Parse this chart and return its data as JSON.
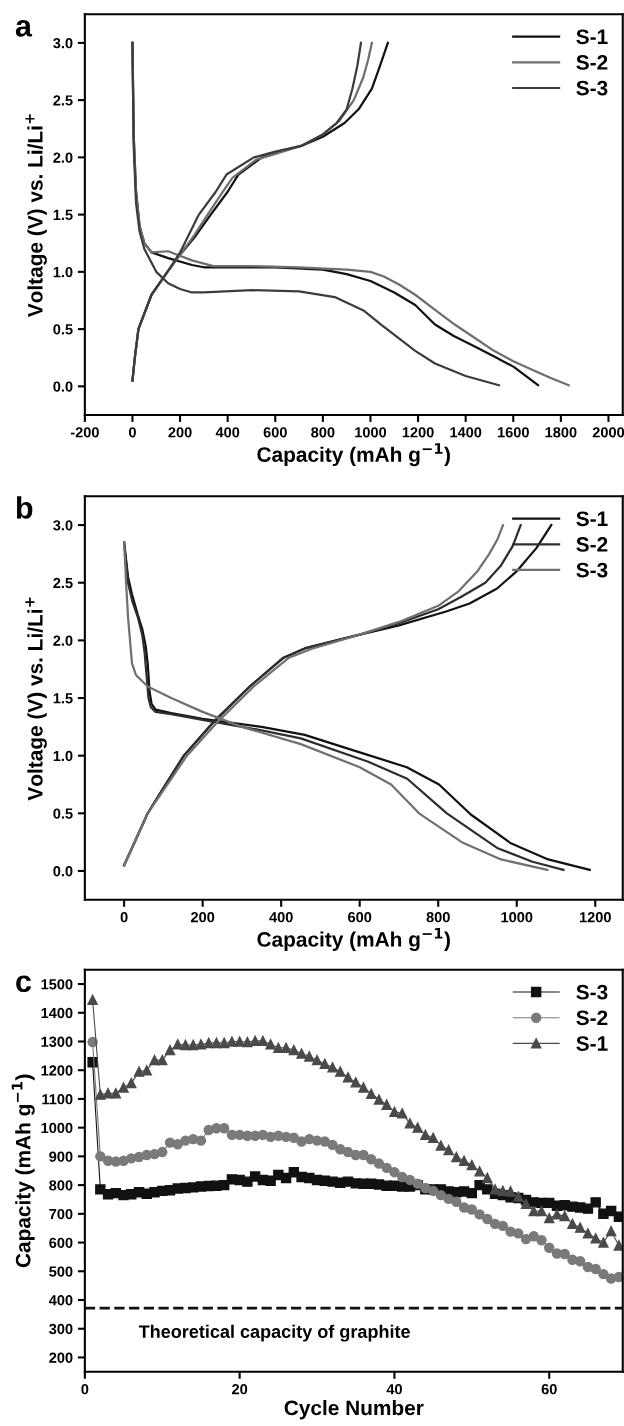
{
  "chart_data": [
    {
      "type": "line",
      "title": "a",
      "xlabel": "Capacity (mAh g$^{−1}$)",
      "ylabel": "Voltage (V) vs. Li/Li$^{+}$",
      "xlim": [
        -200,
        2060
      ],
      "ylim": [
        -0.25,
        3.25
      ],
      "xticks": [
        -200,
        0,
        200,
        400,
        600,
        800,
        1000,
        1200,
        1400,
        1600,
        1800,
        2000
      ],
      "yticks": [
        {
          "value": 0,
          "label": "0.0"
        },
        {
          "value": 0.5,
          "label": "0.5"
        },
        {
          "value": 1,
          "label": "1.0"
        },
        {
          "value": 1.5,
          "label": "1.5"
        },
        {
          "value": 2,
          "label": "2.0"
        },
        {
          "value": 2.5,
          "label": "2.5"
        },
        {
          "value": 3,
          "label": "3.0"
        }
      ],
      "legend": "top right",
      "marker": "none",
      "line_style": "solid",
      "series": [
        {
          "name": "S-1",
          "color": "#111111",
          "x": [
            0,
            5,
            15,
            30,
            50,
            80,
            150,
            250,
            300,
            400,
            600,
            800,
            900,
            1000,
            1100,
            1188,
            1271,
            1350,
            1436,
            1520,
            1602,
            1704,
            null,
            0,
            10,
            25,
            80,
            147,
            200,
            260,
            329,
            400,
            445,
            544,
            600,
            709,
            800,
            891,
            950,
            1006,
            1040,
            1073
          ],
          "values": [
            3.0,
            2.2,
            1.7,
            1.4,
            1.25,
            1.17,
            1.12,
            1.06,
            1.04,
            1.04,
            1.04,
            1.02,
            0.98,
            0.92,
            0.82,
            0.71,
            0.54,
            0.44,
            0.35,
            0.26,
            0.17,
            0.01,
            null,
            0.05,
            0.25,
            0.5,
            0.8,
            1.0,
            1.15,
            1.3,
            1.5,
            1.7,
            1.85,
            2.0,
            2.04,
            2.1,
            2.18,
            2.3,
            2.42,
            2.6,
            2.8,
            3.0
          ]
        },
        {
          "name": "S-2",
          "color": "#6e6e6e",
          "x": [
            0,
            5,
            15,
            30,
            50,
            80,
            150,
            250,
            340,
            500,
            700,
            900,
            1000,
            1056,
            1120,
            1188,
            1270,
            1354,
            1440,
            1519,
            1600,
            1684,
            1760,
            1833,
            null,
            0,
            10,
            25,
            80,
            147,
            200,
            260,
            300,
            380,
            420,
            520,
            600,
            709,
            800,
            870,
            930,
            970,
            990,
            1006
          ],
          "values": [
            3.0,
            2.2,
            1.7,
            1.4,
            1.25,
            1.17,
            1.18,
            1.1,
            1.05,
            1.05,
            1.04,
            1.02,
            1.0,
            0.96,
            0.89,
            0.8,
            0.67,
            0.54,
            0.42,
            0.31,
            0.22,
            0.14,
            0.07,
            0.01,
            null,
            0.05,
            0.25,
            0.5,
            0.8,
            1.0,
            1.15,
            1.32,
            1.45,
            1.7,
            1.82,
            1.98,
            2.03,
            2.1,
            2.2,
            2.32,
            2.5,
            2.7,
            2.85,
            3.0
          ]
        },
        {
          "name": "S-3",
          "color": "#3c3c3c",
          "x": [
            0,
            5,
            15,
            30,
            50,
            100,
            150,
            200,
            250,
            300,
            500,
            700,
            850,
            973,
            1050,
            1106,
            1188,
            1271,
            1400,
            1540,
            null,
            0,
            10,
            25,
            80,
            147,
            200,
            279,
            350,
            395,
            510,
            600,
            709,
            800,
            858,
            900,
            924,
            945,
            960
          ],
          "values": [
            3.0,
            2.1,
            1.6,
            1.35,
            1.2,
            1.0,
            0.9,
            0.85,
            0.82,
            0.82,
            0.84,
            0.83,
            0.78,
            0.66,
            0.53,
            0.44,
            0.31,
            0.2,
            0.09,
            0.01,
            null,
            0.05,
            0.25,
            0.5,
            0.8,
            1.0,
            1.17,
            1.5,
            1.7,
            1.85,
            2.0,
            2.05,
            2.1,
            2.2,
            2.3,
            2.42,
            2.6,
            2.8,
            3.0
          ]
        }
      ]
    },
    {
      "type": "line",
      "title": "b",
      "xlabel": "Capacity (mAh g$^{−1}$)",
      "ylabel": "Voltage (V) vs. Li/Li$^{+}$",
      "xlim": [
        -100,
        1270
      ],
      "ylim": [
        -0.25,
        3.25
      ],
      "xticks": [
        0,
        200,
        400,
        600,
        800,
        1000,
        1200
      ],
      "yticks": [
        {
          "value": 0,
          "label": "0.0"
        },
        {
          "value": 0.5,
          "label": "0.5"
        },
        {
          "value": 1,
          "label": "1.0"
        },
        {
          "value": 1.5,
          "label": "1.5"
        },
        {
          "value": 2,
          "label": "2.0"
        },
        {
          "value": 2.5,
          "label": "2.5"
        },
        {
          "value": 3,
          "label": "3.0"
        }
      ],
      "legend": "top right",
      "marker": "none",
      "line_style": "solid",
      "series": [
        {
          "name": "S-1",
          "color": "#111111",
          "x": [
            0,
            10,
            20,
            35,
            46,
            55,
            60,
            65,
            70,
            80,
            120,
            200,
            350,
            460,
            580,
            720,
            802,
            883,
            985,
            1080,
            1186,
            null,
            0,
            20,
            60,
            100,
            152,
            230,
            320,
            406,
            460,
            600,
            700,
            820,
            880,
            950,
            1000,
            1050,
            1088
          ],
          "values": [
            2.85,
            2.55,
            2.4,
            2.22,
            2.1,
            1.95,
            1.8,
            1.55,
            1.45,
            1.4,
            1.37,
            1.32,
            1.25,
            1.18,
            1.05,
            0.9,
            0.75,
            0.49,
            0.24,
            0.1,
            0.01,
            null,
            0.05,
            0.2,
            0.5,
            0.72,
            1.0,
            1.3,
            1.6,
            1.85,
            1.93,
            2.05,
            2.13,
            2.25,
            2.32,
            2.45,
            2.6,
            2.8,
            3.0
          ]
        },
        {
          "name": "S-2",
          "color": "#2e2e2e",
          "x": [
            0,
            10,
            20,
            35,
            46,
            52,
            57,
            62,
            68,
            80,
            120,
            200,
            350,
            450,
            620,
            721,
            822,
            950,
            1040,
            1119,
            null,
            0,
            20,
            60,
            100,
            152,
            230,
            320,
            406,
            460,
            600,
            700,
            800,
            860,
            920,
            960,
            990,
            1010
          ],
          "values": [
            2.85,
            2.5,
            2.35,
            2.2,
            2.05,
            1.9,
            1.7,
            1.5,
            1.42,
            1.38,
            1.36,
            1.31,
            1.22,
            1.15,
            0.95,
            0.8,
            0.5,
            0.2,
            0.08,
            0.01,
            null,
            0.05,
            0.2,
            0.5,
            0.72,
            1.0,
            1.3,
            1.6,
            1.85,
            1.93,
            2.05,
            2.15,
            2.27,
            2.38,
            2.5,
            2.65,
            2.82,
            3.0
          ]
        },
        {
          "name": "S-3",
          "color": "#707070",
          "x": [
            0,
            5,
            10,
            20,
            30,
            60,
            120,
            200,
            300,
            450,
            600,
            680,
            751,
            860,
            960,
            1078,
            null,
            0,
            20,
            60,
            100,
            160,
            240,
            330,
            420,
            480,
            600,
            700,
            800,
            850,
            900,
            930,
            950,
            965
          ],
          "values": [
            2.85,
            2.5,
            2.2,
            1.8,
            1.7,
            1.6,
            1.5,
            1.38,
            1.25,
            1.1,
            0.9,
            0.75,
            0.5,
            0.25,
            0.1,
            0.01,
            null,
            0.05,
            0.2,
            0.5,
            0.7,
            1.0,
            1.3,
            1.6,
            1.85,
            1.93,
            2.05,
            2.16,
            2.3,
            2.42,
            2.6,
            2.75,
            2.87,
            3.0
          ]
        }
      ]
    },
    {
      "type": "line",
      "title": "c",
      "xlabel": "Cycle Number",
      "ylabel": "Capacity (mAh g$^{−1}$)",
      "xlim": [
        0,
        69.5
      ],
      "ylim": [
        150,
        1550
      ],
      "xticks": [
        0,
        20,
        40,
        60
      ],
      "yticks": [
        200,
        300,
        400,
        500,
        600,
        700,
        800,
        900,
        1000,
        1100,
        1200,
        1300,
        1400,
        1500
      ],
      "legend": "top right",
      "line_style": "solid",
      "x": [
        1,
        2,
        3,
        4,
        5,
        6,
        7,
        8,
        9,
        10,
        11,
        12,
        13,
        14,
        15,
        16,
        17,
        18,
        19,
        20,
        21,
        22,
        23,
        24,
        25,
        26,
        27,
        28,
        29,
        30,
        31,
        32,
        33,
        34,
        35,
        36,
        37,
        38,
        39,
        40,
        41,
        42,
        43,
        44,
        45,
        46,
        47,
        48,
        49,
        50,
        51,
        52,
        53,
        54,
        55,
        56,
        57,
        58,
        59,
        60,
        61,
        62,
        63,
        64,
        65,
        66,
        67,
        68,
        69
      ],
      "ref_lines": [
        {
          "axis": "y",
          "value": 372,
          "label": "Theoretical capacity of graphite",
          "color": "#111111",
          "line_style": "dashed"
        }
      ],
      "series": [
        {
          "name": "S-3",
          "color": "#111111",
          "marker": "square",
          "values": [
            1228,
            785,
            768,
            772,
            765,
            768,
            775,
            770,
            775,
            780,
            782,
            788,
            790,
            792,
            795,
            797,
            798,
            800,
            820,
            818,
            812,
            830,
            818,
            815,
            835,
            825,
            845,
            828,
            825,
            818,
            815,
            812,
            808,
            812,
            806,
            805,
            805,
            802,
            798,
            798,
            795,
            795,
            800,
            785,
            785,
            785,
            778,
            775,
            778,
            772,
            800,
            785,
            770,
            765,
            758,
            755,
            748,
            740,
            738,
            738,
            728,
            730,
            725,
            722,
            718,
            740,
            700,
            710,
            690
          ]
        },
        {
          "name": "S-2",
          "color": "#7a7a7a",
          "marker": "circle",
          "values": [
            1298,
            900,
            885,
            882,
            885,
            893,
            898,
            905,
            908,
            915,
            948,
            942,
            955,
            960,
            955,
            992,
            998,
            998,
            975,
            975,
            972,
            972,
            975,
            968,
            972,
            968,
            965,
            952,
            960,
            955,
            952,
            940,
            925,
            915,
            905,
            905,
            890,
            875,
            860,
            845,
            828,
            818,
            805,
            790,
            780,
            765,
            752,
            742,
            722,
            715,
            698,
            682,
            665,
            658,
            638,
            632,
            612,
            622,
            608,
            582,
            562,
            560,
            540,
            535,
            515,
            508,
            490,
            475,
            480
          ]
        },
        {
          "name": "S-1",
          "color": "#4a4a4a",
          "marker": "triangle",
          "values": [
            1445,
            1115,
            1120,
            1120,
            1140,
            1155,
            1195,
            1200,
            1235,
            1235,
            1270,
            1290,
            1288,
            1288,
            1290,
            1295,
            1295,
            1295,
            1300,
            1300,
            1298,
            1302,
            1302,
            1290,
            1278,
            1278,
            1270,
            1258,
            1248,
            1235,
            1222,
            1210,
            1195,
            1175,
            1158,
            1140,
            1118,
            1098,
            1080,
            1055,
            1050,
            1015,
            1000,
            975,
            965,
            938,
            922,
            898,
            885,
            870,
            848,
            825,
            785,
            780,
            778,
            760,
            735,
            710,
            710,
            685,
            698,
            692,
            665,
            652,
            632,
            615,
            600,
            640,
            590
          ]
        }
      ]
    }
  ]
}
